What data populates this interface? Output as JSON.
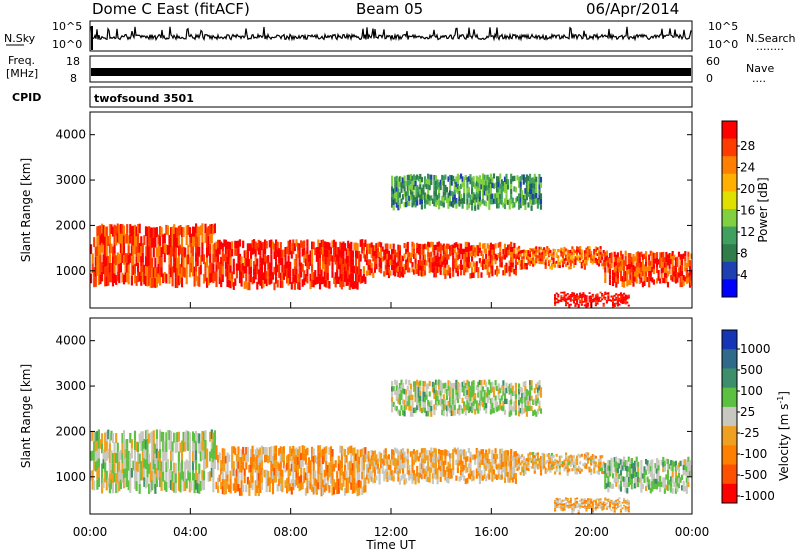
{
  "header": {
    "station": "Dome C East (fitACF)",
    "beam": "Beam 05",
    "date": "06/Apr/2014"
  },
  "strips": {
    "nsky_label": "N.Sky",
    "nsearch_label": "N.Search",
    "nsearch_dots": "........",
    "nsky_ticks": [
      "10^5",
      "10^0"
    ],
    "nsearch_ticks": [
      "10^5",
      "10^0"
    ],
    "freq_label_1": "Freq.",
    "freq_label_2": "[MHz]",
    "freq_ticks": [
      "18",
      "8"
    ],
    "nave_label": "Nave",
    "nave_dots": "....",
    "nave_ticks": [
      "60",
      "0"
    ],
    "cpid_label": "CPID",
    "cpid_value": "twofsound 3501"
  },
  "axes": {
    "ylabel": "Slant Range [km]",
    "xlabel": "Time UT",
    "yticks": [
      "4000",
      "3000",
      "2000",
      "1000"
    ],
    "xticks": [
      "00:00",
      "04:00",
      "08:00",
      "12:00",
      "16:00",
      "20:00",
      "00:00"
    ]
  },
  "power_bar": {
    "label": "Power [dB]",
    "ticks": [
      "28",
      "24",
      "20",
      "16",
      "12",
      "8",
      "4"
    ],
    "colors": [
      "#ff0000",
      "#ff3c00",
      "#ff8000",
      "#ffb000",
      "#e0e000",
      "#80d040",
      "#40a060",
      "#2e7d4a",
      "#1e40b0",
      "#0000ff"
    ]
  },
  "velocity_bar": {
    "label": "Velocity [m s",
    "label_sup": "-1",
    "label_end": "]",
    "ticks": [
      "1000",
      "500",
      "100",
      "25",
      "-25",
      "-100",
      "-500",
      "-1000"
    ],
    "colors": [
      "#1535b5",
      "#2f6a8a",
      "#3c8f6a",
      "#5cc040",
      "#c8c8c0",
      "#f0a020",
      "#ff8000",
      "#ff5000",
      "#ff0000"
    ]
  },
  "chart_data": [
    {
      "type": "heatmap",
      "title": "Power [dB]",
      "xlabel": "Time UT",
      "ylabel": "Slant Range [km]",
      "xlim": [
        0,
        24
      ],
      "ylim": [
        180,
        4500
      ],
      "color_range": [
        0,
        30
      ],
      "bands": [
        {
          "t_start": 0.0,
          "t_end": 5.0,
          "range_low": 700,
          "range_high": 2000,
          "value": 26
        },
        {
          "t_start": 5.0,
          "t_end": 11.0,
          "range_low": 650,
          "range_high": 1650,
          "value": 28
        },
        {
          "t_start": 11.0,
          "t_end": 17.0,
          "range_low": 900,
          "range_high": 1600,
          "value": 26
        },
        {
          "t_start": 17.0,
          "t_end": 20.5,
          "range_low": 1100,
          "range_high": 1500,
          "value": 24
        },
        {
          "t_start": 20.5,
          "t_end": 24.0,
          "range_low": 700,
          "range_high": 1400,
          "value": 26
        },
        {
          "t_start": 18.5,
          "t_end": 21.5,
          "range_low": 250,
          "range_high": 500,
          "value": 30
        },
        {
          "t_start": 12.0,
          "t_end": 18.0,
          "range_low": 2400,
          "range_high": 3100,
          "value": 10
        }
      ]
    },
    {
      "type": "heatmap",
      "title": "Velocity [m s-1]",
      "xlabel": "Time UT",
      "ylabel": "Slant Range [km]",
      "xlim": [
        0,
        24
      ],
      "ylim": [
        180,
        4500
      ],
      "color_range": [
        -1000,
        1000
      ],
      "bands": [
        {
          "t_start": 0.0,
          "t_end": 5.0,
          "range_low": 700,
          "range_high": 2000,
          "value": 60
        },
        {
          "t_start": 5.0,
          "t_end": 11.0,
          "range_low": 650,
          "range_high": 1650,
          "value": -300
        },
        {
          "t_start": 11.0,
          "t_end": 17.0,
          "range_low": 900,
          "range_high": 1600,
          "value": -200
        },
        {
          "t_start": 17.0,
          "t_end": 20.5,
          "range_low": 1100,
          "range_high": 1500,
          "value": -150
        },
        {
          "t_start": 20.5,
          "t_end": 24.0,
          "range_low": 700,
          "range_high": 1400,
          "value": 150
        },
        {
          "t_start": 18.5,
          "t_end": 21.5,
          "range_low": 250,
          "range_high": 500,
          "value": -200
        },
        {
          "t_start": 12.0,
          "t_end": 18.0,
          "range_low": 2400,
          "range_high": 3100,
          "value": 80
        }
      ]
    }
  ]
}
